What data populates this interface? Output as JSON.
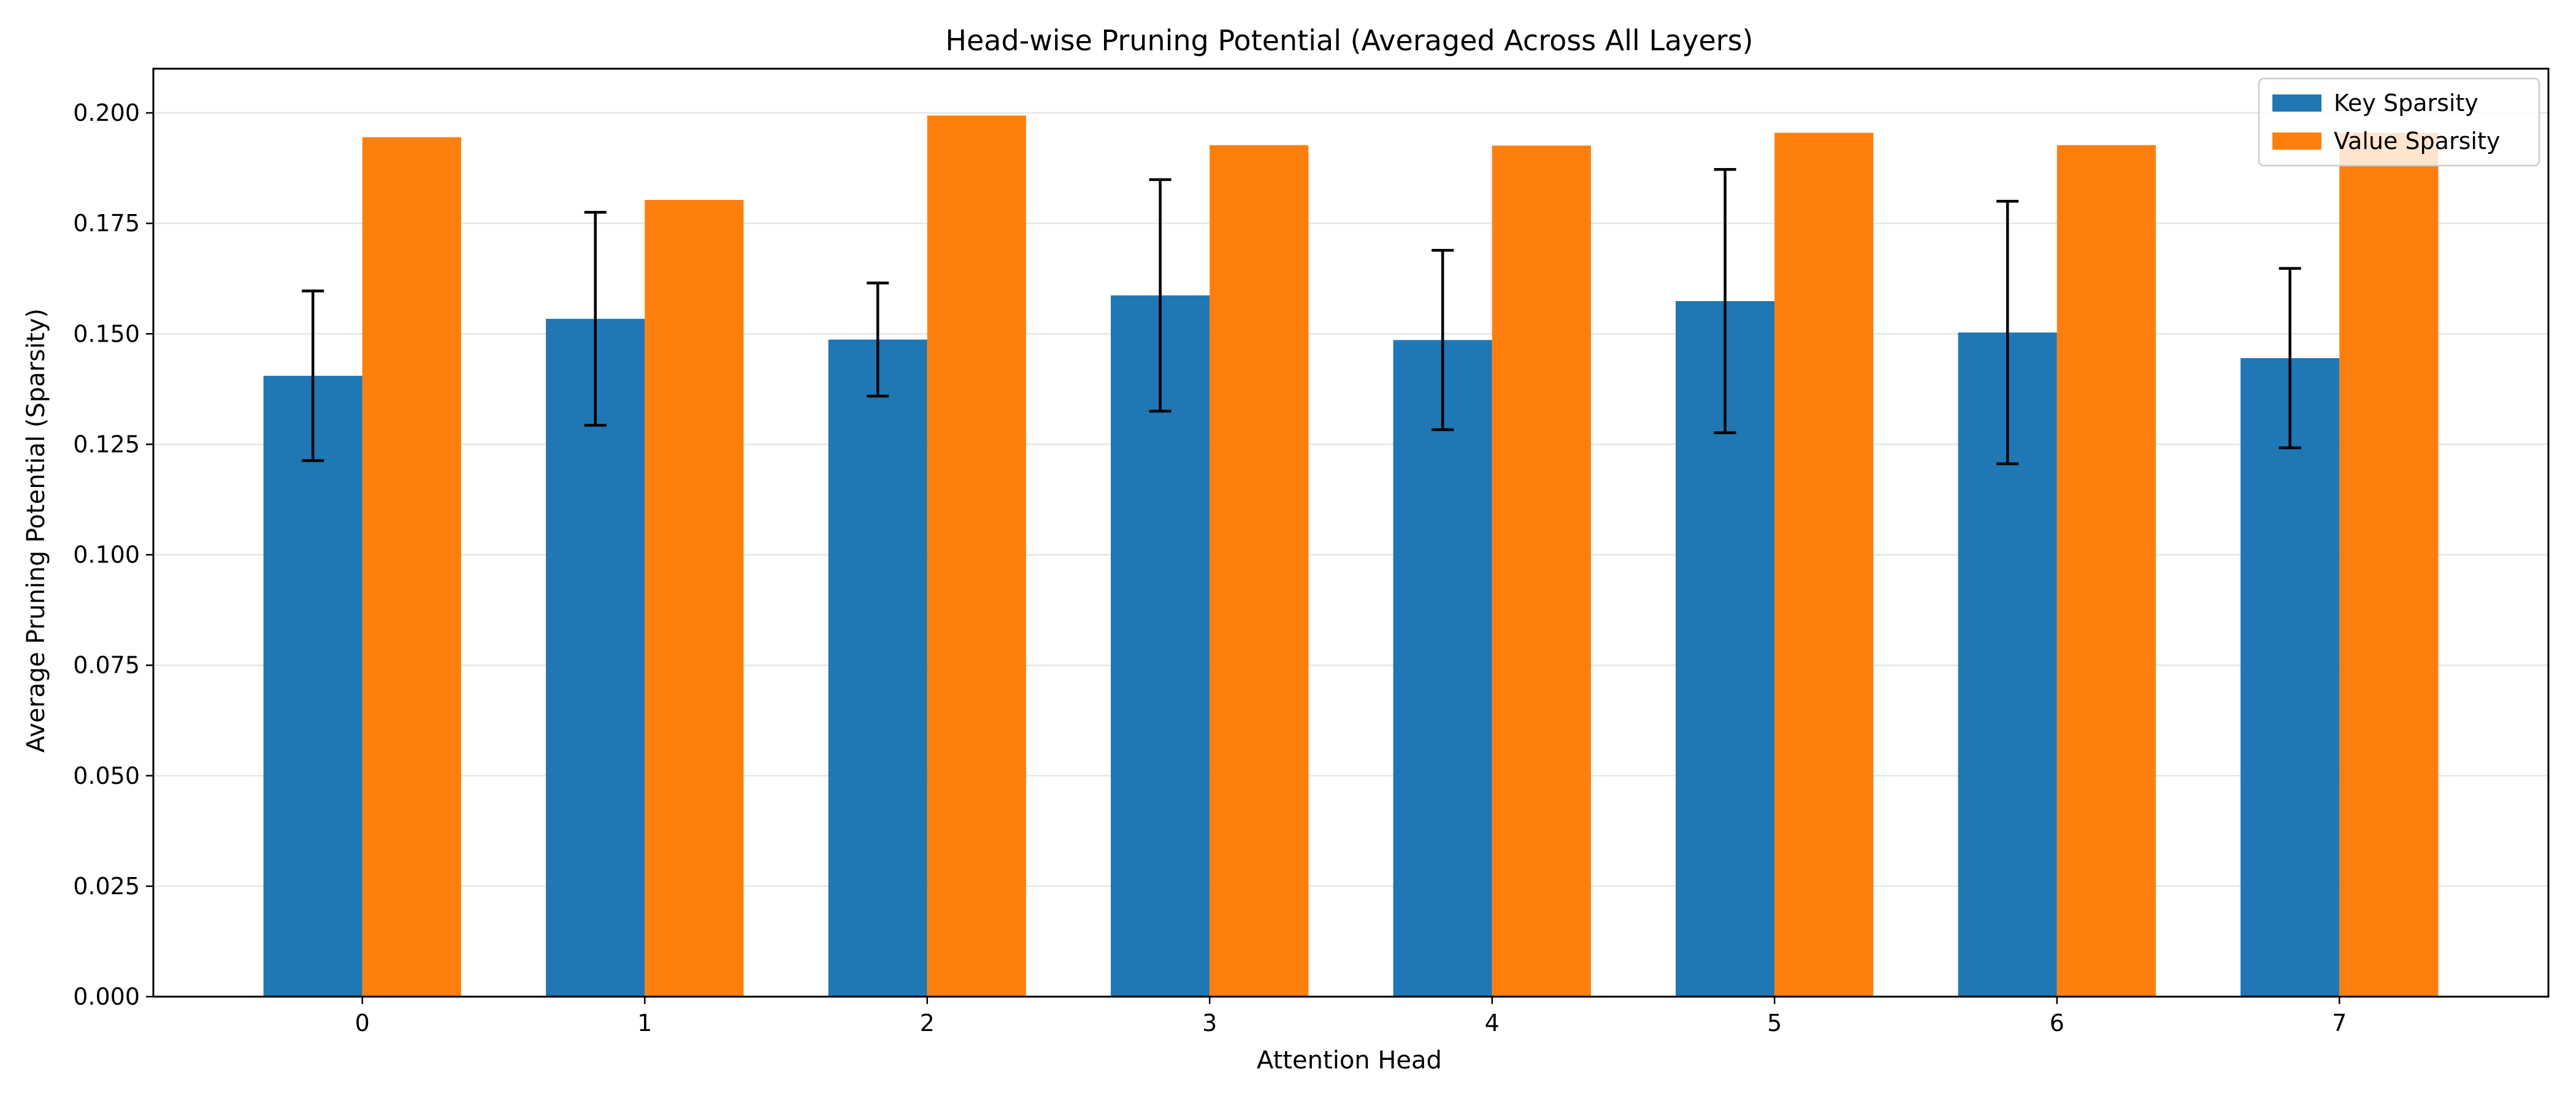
{
  "chart_data": {
    "type": "bar",
    "title": "Head-wise Pruning Potential (Averaged Across All Layers)",
    "xlabel": "Attention Head",
    "ylabel": "Average Pruning Potential (Sparsity)",
    "categories": [
      "0",
      "1",
      "2",
      "3",
      "4",
      "5",
      "6",
      "7"
    ],
    "ylim": [
      0,
      0.21
    ],
    "yticks": [
      0.0,
      0.025,
      0.05,
      0.075,
      0.1,
      0.125,
      0.15,
      0.175,
      0.2
    ],
    "ytick_labels": [
      "0.000",
      "0.025",
      "0.050",
      "0.075",
      "0.100",
      "0.125",
      "0.150",
      "0.175",
      "0.200"
    ],
    "grid": "y",
    "legend_position": "top-right",
    "series": [
      {
        "name": "Key Sparsity",
        "color": "#1f77b4",
        "values": [
          0.1405,
          0.1534,
          0.1487,
          0.1587,
          0.1486,
          0.1574,
          0.1503,
          0.1445
        ],
        "error": [
          0.0192,
          0.0241,
          0.0128,
          0.0262,
          0.0203,
          0.0298,
          0.0297,
          0.0203
        ]
      },
      {
        "name": "Value Sparsity",
        "color": "#ff7f0e",
        "values": [
          0.1945,
          0.1803,
          0.1994,
          0.1927,
          0.1926,
          0.1955,
          0.1927,
          0.1955
        ]
      }
    ]
  }
}
